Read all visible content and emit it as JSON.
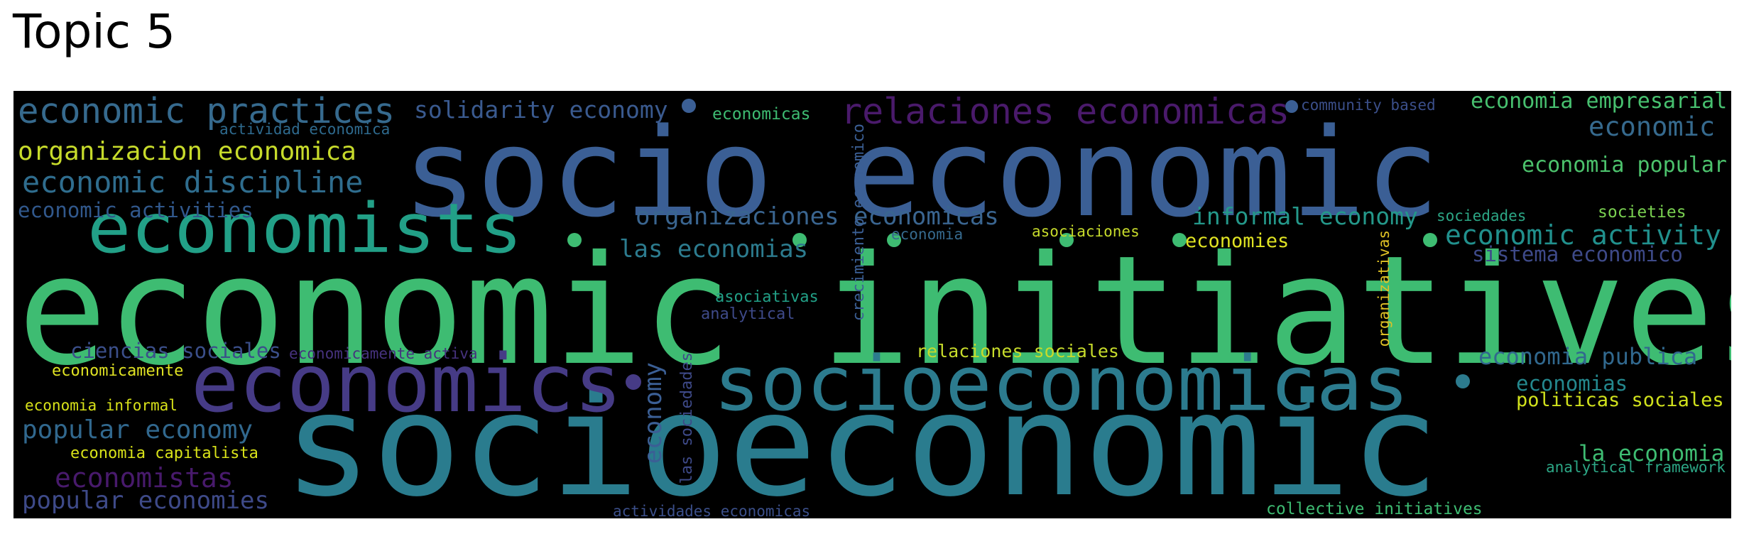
{
  "page": {
    "title": "Topic 5"
  },
  "wordcloud": {
    "words": [
      {
        "text": "economic initiatives",
        "color": "#3ebc72"
      },
      {
        "text": "socioeconomic",
        "color": "#2a7c8e"
      },
      {
        "text": "socio economic",
        "color": "#3b5f95"
      },
      {
        "text": "economics",
        "color": "#463b86"
      },
      {
        "text": "socioeconomicas",
        "color": "#2c7b8e"
      },
      {
        "text": "economists",
        "color": "#22a087"
      },
      {
        "text": "relaciones economicas",
        "color": "#4a1a6b"
      },
      {
        "text": "economic practices",
        "color": "#366a8e"
      },
      {
        "text": "solidarity economy",
        "color": "#3a5a8f"
      },
      {
        "text": "organizacion economica",
        "color": "#c7db2b"
      },
      {
        "text": "economic discipline",
        "color": "#2f6d8e"
      },
      {
        "text": "economic activities",
        "color": "#31588c"
      },
      {
        "text": "actividad economica",
        "color": "#2e6a8e"
      },
      {
        "text": "economicas",
        "color": "#3ebc72"
      },
      {
        "text": "community based",
        "color": "#3b4f8a"
      },
      {
        "text": "economia empresarial",
        "color": "#47c06f"
      },
      {
        "text": "economic",
        "color": "#366a8e"
      },
      {
        "text": "economia popular",
        "color": "#4cc26c"
      },
      {
        "text": "organizaciones economicas",
        "color": "#3a6590"
      },
      {
        "text": "crecimiento economico",
        "color": "#3b5f95"
      },
      {
        "text": "informal economy",
        "color": "#24988a"
      },
      {
        "text": "sociedades",
        "color": "#2ca685"
      },
      {
        "text": "societies",
        "color": "#7ad151"
      },
      {
        "text": "economic activity",
        "color": "#21908d"
      },
      {
        "text": "las economias",
        "color": "#2c7b8e"
      },
      {
        "text": "economia",
        "color": "#366a8e"
      },
      {
        "text": "asociaciones",
        "color": "#c7db2b"
      },
      {
        "text": "economies",
        "color": "#e0e323"
      },
      {
        "text": "sistema economico",
        "color": "#3e4a89"
      },
      {
        "text": "organizativas",
        "color": "#e0c225"
      },
      {
        "text": "asociativas",
        "color": "#22a087"
      },
      {
        "text": "analytical",
        "color": "#3e4a89"
      },
      {
        "text": "ciencias sociales",
        "color": "#3b4f8a"
      },
      {
        "text": "economicamente activa",
        "color": "#46327e"
      },
      {
        "text": "relaciones sociales",
        "color": "#c7db2b"
      },
      {
        "text": "economia publica",
        "color": "#31688e"
      },
      {
        "text": "economicamente",
        "color": "#e0e323"
      },
      {
        "text": "economia informal",
        "color": "#d8e219"
      },
      {
        "text": "economy",
        "color": "#3b5f95"
      },
      {
        "text": "las sociedades",
        "color": "#3e4a89"
      },
      {
        "text": "economias",
        "color": "#24888e"
      },
      {
        "text": "politicas sociales",
        "color": "#d0e11c"
      },
      {
        "text": "popular economy",
        "color": "#31688e"
      },
      {
        "text": "economia capitalista",
        "color": "#d8e219"
      },
      {
        "text": "la economia",
        "color": "#3ebc72"
      },
      {
        "text": "analytical framework",
        "color": "#2ca685"
      },
      {
        "text": "economistas",
        "color": "#481a6c"
      },
      {
        "text": "popular economies",
        "color": "#3e4a89"
      },
      {
        "text": "actividades economicas",
        "color": "#3b4f8a"
      },
      {
        "text": "collective initiatives",
        "color": "#3ebc72"
      }
    ]
  }
}
